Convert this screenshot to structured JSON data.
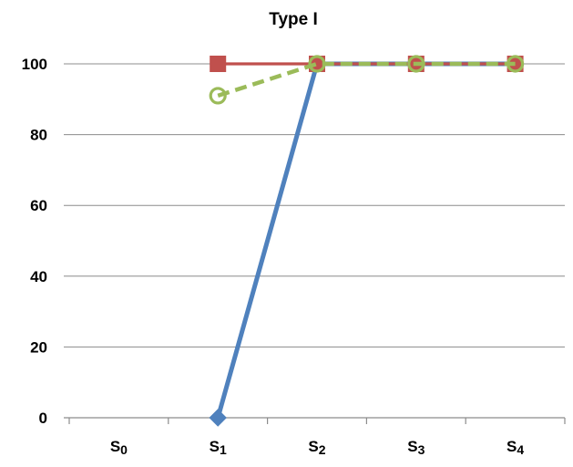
{
  "chart_data": {
    "type": "line",
    "title": "Type I",
    "xlabel": "",
    "ylabel": "",
    "categories": [
      "S0",
      "S1",
      "S2",
      "S3",
      "S4"
    ],
    "ylim": [
      0,
      100
    ],
    "yticks": [
      0,
      20,
      40,
      60,
      80,
      100
    ],
    "grid": true,
    "legend": "none",
    "series": [
      {
        "values": [
          null,
          0,
          100,
          100,
          100
        ],
        "color": "#4f81bd",
        "marker": "diamond",
        "dash": "solid"
      },
      {
        "values": [
          null,
          100,
          100,
          100,
          100
        ],
        "color": "#c0504d",
        "marker": "square",
        "dash": "solid"
      },
      {
        "values": [
          null,
          91,
          100,
          100,
          100
        ],
        "color": "#9bbb59",
        "marker": "circle-open",
        "dash": "dashed"
      }
    ]
  }
}
